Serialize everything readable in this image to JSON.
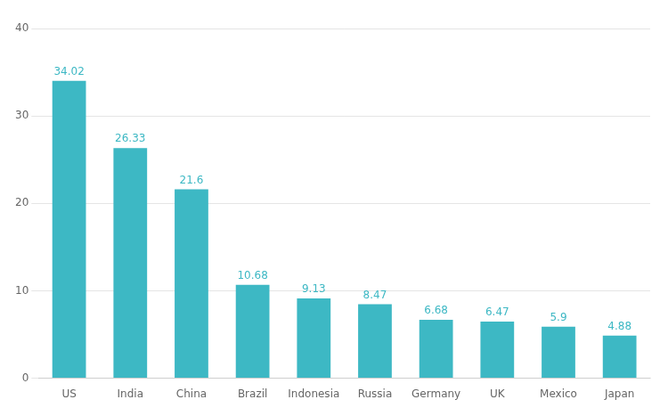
{
  "chart_data": {
    "type": "bar",
    "categories": [
      "US",
      "India",
      "China",
      "Brazil",
      "Indonesia",
      "Russia",
      "Germany",
      "UK",
      "Mexico",
      "Japan"
    ],
    "values": [
      34.02,
      26.33,
      21.6,
      10.68,
      9.13,
      8.47,
      6.68,
      6.47,
      5.9,
      4.88
    ],
    "color": "#3db8c4",
    "ylim": [
      0,
      40
    ],
    "yticks": [
      0,
      10,
      20,
      30,
      40
    ],
    "grid": true,
    "data_labels": true
  }
}
